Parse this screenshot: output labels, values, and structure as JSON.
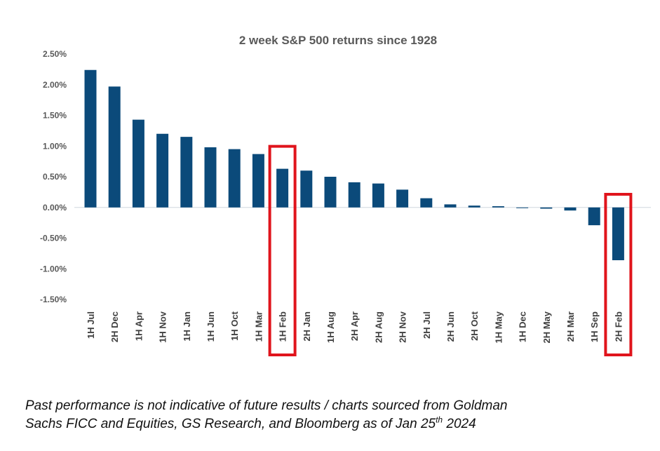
{
  "chart_data": {
    "type": "bar",
    "title": "2 week S&P 500 returns since 1928",
    "xlabel": "",
    "ylabel": "",
    "ylim": [
      -1.5,
      2.5
    ],
    "y_ticks": [
      "2.50%",
      "2.00%",
      "1.50%",
      "1.00%",
      "0.50%",
      "0.00%",
      "-0.50%",
      "-1.00%",
      "-1.50%"
    ],
    "categories": [
      "1H Jul",
      "2H Dec",
      "1H Apr",
      "1H Nov",
      "1H Jan",
      "1H Jun",
      "1H Oct",
      "1H Mar",
      "1H Feb",
      "2H Jan",
      "1H Aug",
      "2H Apr",
      "2H Aug",
      "2H Nov",
      "2H Jul",
      "2H Jun",
      "2H Oct",
      "1H May",
      "1H Dec",
      "2H May",
      "2H Mar",
      "1H Sep",
      "2H Feb"
    ],
    "values": [
      2.24,
      1.97,
      1.43,
      1.2,
      1.15,
      0.98,
      0.95,
      0.87,
      0.63,
      0.6,
      0.5,
      0.41,
      0.39,
      0.29,
      0.15,
      0.05,
      0.03,
      0.02,
      0.0,
      -0.02,
      -0.05,
      -0.29,
      -0.86
    ],
    "highlighted": [
      "1H Feb",
      "2H Feb"
    ],
    "grid": false,
    "legend": "none"
  },
  "colors": {
    "bar": "#0b4a7a",
    "highlight": "#e0141c",
    "axis_line": "#d0d7de"
  },
  "footnote": {
    "line1": "Past performance is not indicative of future results / charts sourced from Goldman",
    "line2_prefix": "Sachs FICC and Equities, GS Research, and Bloomberg as of Jan 25",
    "line2_sup": "th",
    "line2_suffix": " 2024"
  }
}
